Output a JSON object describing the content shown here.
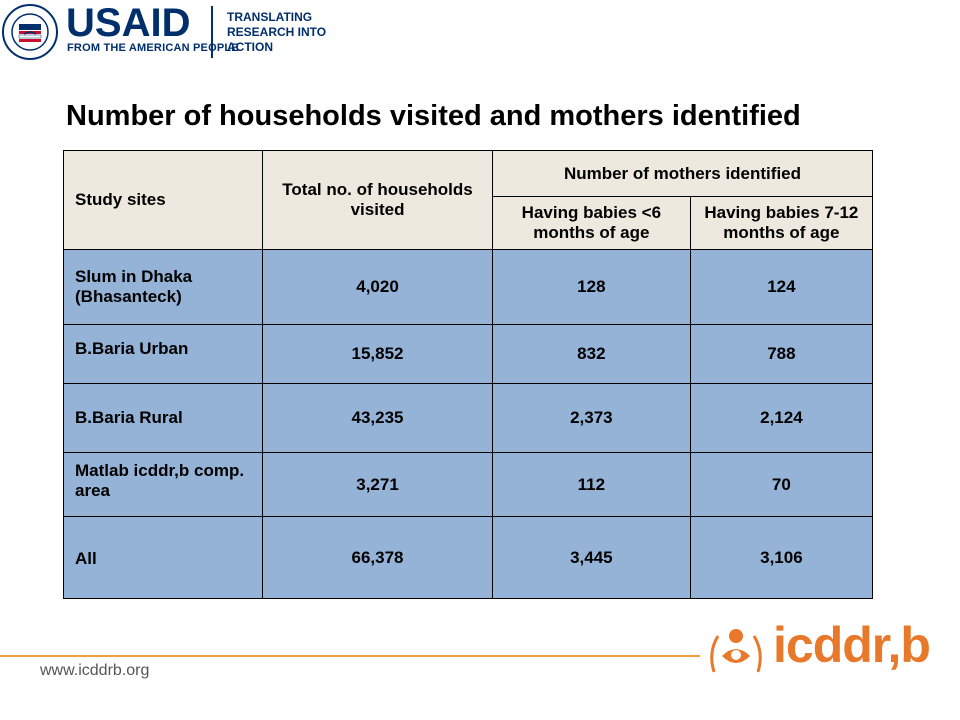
{
  "header": {
    "usaid_word": "USAID",
    "usaid_tagline": "FROM THE AMERICAN PEOPLE",
    "right_text_lines": [
      "TRANSLATING",
      "RESEARCH INTO",
      "ACTION"
    ],
    "seal_text": "UNITED STATES AGENCY INTERNATIONAL DEVELOPMENT"
  },
  "title": "Number of households visited and mothers identified",
  "table": {
    "headers": {
      "study_sites": "Study sites",
      "total": "Total no. of households visited",
      "mothers_group": "Number of mothers identified",
      "lt6": "Having babies <6 months of age",
      "m7_12": "Having babies 7-12 months of age"
    },
    "rows": [
      {
        "site": "Slum in Dhaka (Bhasanteck)",
        "total": "4,020",
        "lt6": "128",
        "m7_12": "124"
      },
      {
        "site": "B.Baria Urban",
        "total": "15,852",
        "lt6": "832",
        "m7_12": "788"
      },
      {
        "site": "B.Baria Rural",
        "total": "43,235",
        "lt6": "2,373",
        "m7_12": "2,124"
      },
      {
        "site": "Matlab icddr,b comp. area",
        "total": "3,271",
        "lt6": "112",
        "m7_12": "70"
      },
      {
        "site": "All",
        "total": "66,378",
        "lt6": "3,445",
        "m7_12": "3,106"
      }
    ]
  },
  "footer": {
    "url": "www.icddrb.org",
    "brand": "icddr,b"
  },
  "colors": {
    "header_bg": "#ede9df",
    "body_bg": "#95b3d7",
    "accent_orange": "#e8792b",
    "usaid_blue": "#002f6c"
  }
}
